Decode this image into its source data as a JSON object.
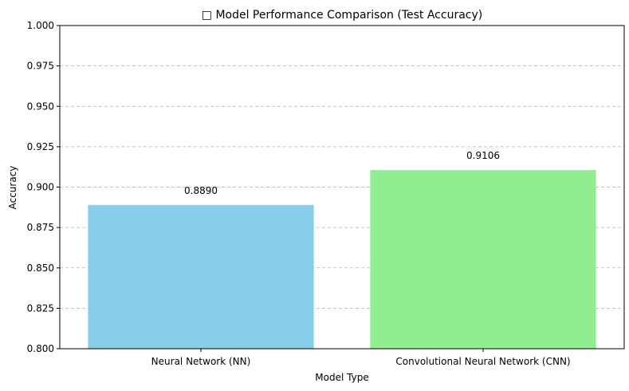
{
  "chart_data": {
    "type": "bar",
    "title": "□ Model Performance Comparison (Test Accuracy)",
    "xlabel": "Model Type",
    "ylabel": "Accuracy",
    "categories": [
      "Neural Network (NN)",
      "Convolutional Neural Network (CNN)"
    ],
    "values": [
      0.889,
      0.9106
    ],
    "value_labels": [
      "0.8890",
      "0.9106"
    ],
    "bar_colors": [
      "#87ceeb",
      "#90ee90"
    ],
    "ylim": [
      0.8,
      1.0
    ],
    "yticks": [
      0.8,
      0.825,
      0.85,
      0.875,
      0.9,
      0.925,
      0.95,
      0.975,
      1.0
    ],
    "ytick_labels": [
      "0.800",
      "0.825",
      "0.850",
      "0.875",
      "0.900",
      "0.925",
      "0.950",
      "0.975",
      "1.000"
    ],
    "grid": "y-dashed"
  }
}
